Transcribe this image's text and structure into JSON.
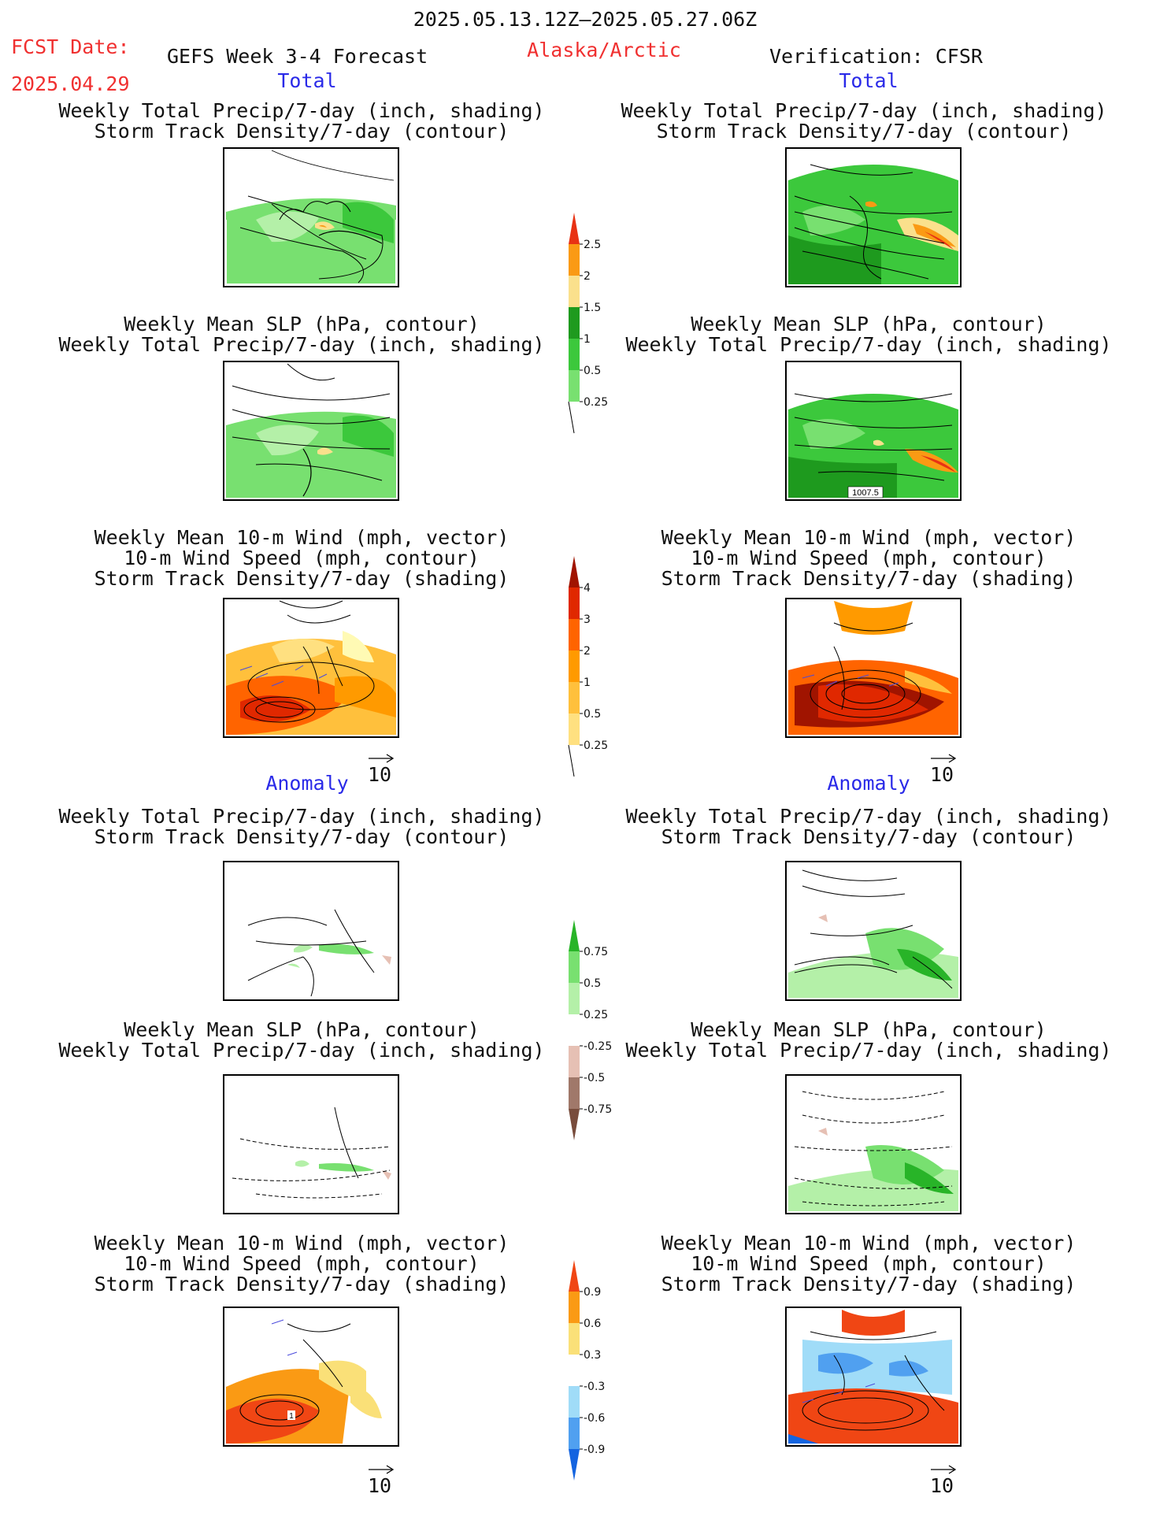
{
  "header": {
    "period": "2025.05.13.12Z—2025.05.27.06Z",
    "fcst_date_label": "FCST Date:",
    "fcst_date_value": "2025.04.29",
    "model_title": "GEFS Week 3-4 Forecast",
    "region": "Alaska/Arctic",
    "verification": "Verification: CFSR"
  },
  "sections": {
    "total": "Total",
    "anomaly": "Anomaly"
  },
  "titles": {
    "precip_storm": [
      "Weekly Total Precip/7-day (inch, shading)",
      "Storm Track Density/7-day (contour)"
    ],
    "slp_precip": [
      "Weekly Mean SLP (hPa, contour)",
      "Weekly Total Precip/7-day (inch, shading)"
    ],
    "wind_storm": [
      "Weekly Mean 10-m Wind (mph, vector)",
      "10-m Wind Speed (mph, contour)",
      "Storm Track Density/7-day (shading)"
    ]
  },
  "panel_labels": {
    "slp_contour": "1007.5",
    "wind_anom_contour": "1"
  },
  "vector_scale": "10",
  "chart_data": [
    {
      "type": "heatmap",
      "name": "precip_total_colorbar",
      "levels": [
        "0.25",
        "0.5",
        "1",
        "1.5",
        "2",
        "2.5"
      ],
      "colors": [
        "#b4f0a8",
        "#78e070",
        "#3cc83c",
        "#1e9a1e",
        "#fae08c",
        "#fa9a14",
        "#e83214"
      ]
    },
    {
      "type": "heatmap",
      "name": "storm_total_colorbar",
      "levels": [
        "0.25",
        "0.5",
        "1",
        "2",
        "3",
        "4"
      ],
      "colors": [
        "#fffab4",
        "#ffe080",
        "#ffc03c",
        "#ff9a00",
        "#ff6400",
        "#e02800",
        "#a01400"
      ]
    },
    {
      "type": "heatmap",
      "name": "precip_anomaly_colorbar",
      "levels": [
        "-0.75",
        "-0.5",
        "-0.25",
        "0.25",
        "0.5",
        "0.75"
      ],
      "colors": [
        "#784c3c",
        "#a0786a",
        "#e6c0b4",
        "#ffffff",
        "#b4f0a8",
        "#78e070",
        "#28b428"
      ]
    },
    {
      "type": "heatmap",
      "name": "storm_anomaly_colorbar",
      "levels": [
        "-0.9",
        "-0.6",
        "-0.3",
        "0.3",
        "0.6",
        "0.9"
      ],
      "colors": [
        "#1464e0",
        "#50a0f0",
        "#a0dcf8",
        "#ffffff",
        "#fae078",
        "#fa9a14",
        "#f04614"
      ]
    }
  ]
}
